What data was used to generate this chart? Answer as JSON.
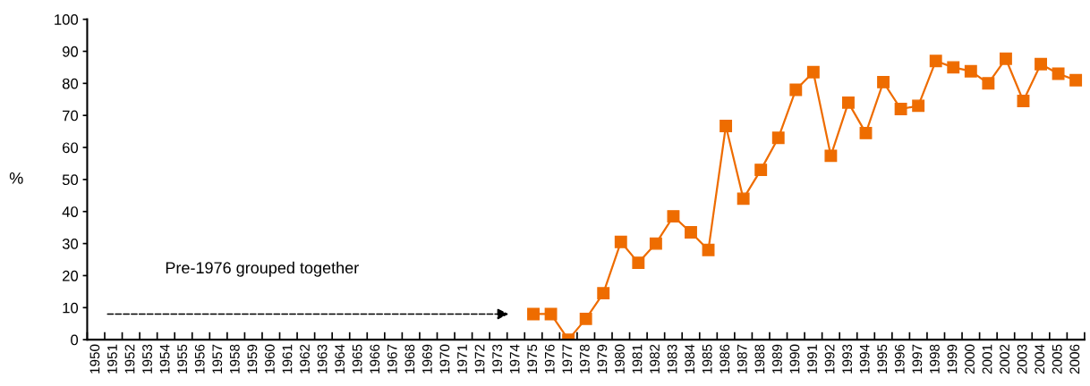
{
  "chart_data": {
    "type": "line",
    "ylabel": "%",
    "categories": [
      "1950",
      "1951",
      "1952",
      "1953",
      "1954",
      "1955",
      "1956",
      "1957",
      "1958",
      "1959",
      "1960",
      "1961",
      "1962",
      "1963",
      "1964",
      "1965",
      "1966",
      "1967",
      "1968",
      "1969",
      "1970",
      "1971",
      "1972",
      "1973",
      "1974",
      "1975",
      "1976",
      "1977",
      "1978",
      "1979",
      "1980",
      "1981",
      "1982",
      "1983",
      "1984",
      "1985",
      "1986",
      "1987",
      "1988",
      "1989",
      "1990",
      "1991",
      "1992",
      "1993",
      "1994",
      "1995",
      "1996",
      "1997",
      "1998",
      "1999",
      "2000",
      "2001",
      "2002",
      "2003",
      "2004",
      "2005",
      "2006"
    ],
    "series": [
      {
        "color": "#ee6c00",
        "values": [
          null,
          null,
          null,
          null,
          null,
          null,
          null,
          null,
          null,
          null,
          null,
          null,
          null,
          null,
          null,
          null,
          null,
          null,
          null,
          null,
          null,
          null,
          null,
          null,
          null,
          8,
          8,
          0,
          6.5,
          14.5,
          30.5,
          24,
          30,
          38.5,
          33.5,
          28,
          66.7,
          44,
          53,
          63,
          78,
          83.5,
          57.4,
          74,
          64.5,
          80.4,
          72,
          73,
          87,
          85,
          83.8,
          80,
          87.7,
          74.5,
          86,
          83,
          81
        ]
      }
    ],
    "ylim": [
      0,
      100
    ],
    "yticks": [
      0,
      10,
      20,
      30,
      40,
      50,
      60,
      70,
      80,
      90,
      100
    ],
    "marker": "square",
    "line_style": "solid",
    "grid": false,
    "legend": false,
    "annotations": [
      "Pre-1976 grouped together"
    ]
  }
}
